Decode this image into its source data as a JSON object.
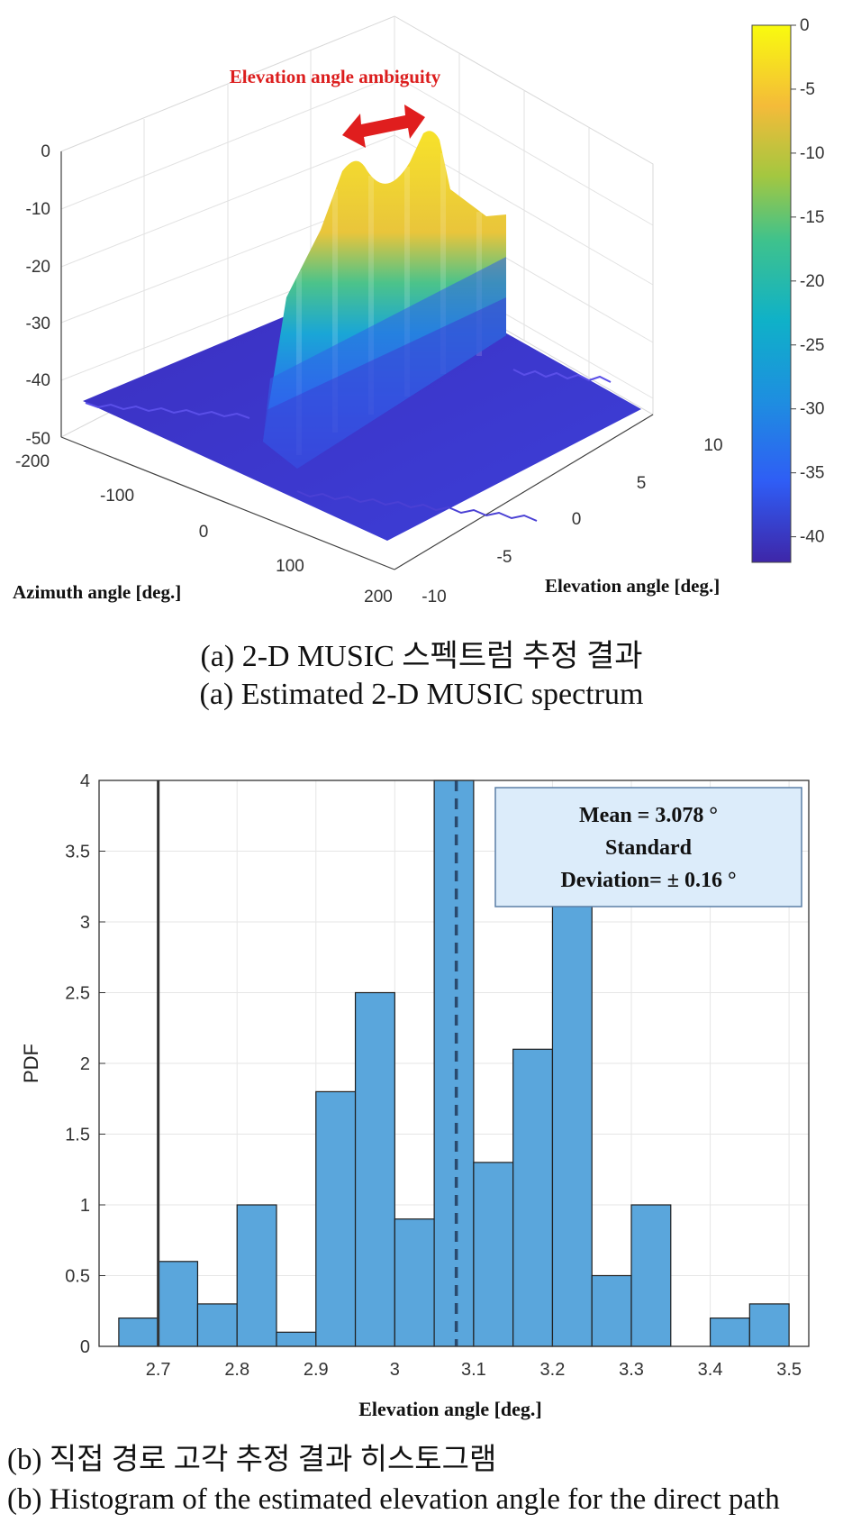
{
  "colors": {
    "bar": "#5aa6dc",
    "bar_edge": "#1f1f1f",
    "annotation_red": "#dc1e1e",
    "box_fill": "#dcecfa",
    "box_edge": "#5b7fa6"
  },
  "chart_data": [
    {
      "type": "surface3d",
      "title": "",
      "annotation": "Elevation angle ambiguity",
      "xlabel": "Azimuth angle [deg.]",
      "ylabel": "Elevation angle [deg.]",
      "zlabel": "",
      "x_ticks": [
        "-200",
        "-100",
        "0",
        "100",
        "200"
      ],
      "y_ticks": [
        "-10",
        "-5",
        "0",
        "5",
        "10"
      ],
      "z_ticks": [
        "0",
        "-10",
        "-20",
        "-30",
        "-40",
        "-50"
      ],
      "xlim": [
        -200,
        200
      ],
      "ylim": [
        -10,
        10
      ],
      "zlim": [
        -50,
        0
      ],
      "colorbar": {
        "ticks": [
          "0",
          "-5",
          "-10",
          "-15",
          "-20",
          "-25",
          "-30",
          "-35",
          "-40"
        ],
        "range": [
          -42,
          0
        ],
        "colormap": "parula"
      },
      "ridge_profile": {
        "elevation": [
          -10,
          -5,
          0,
          2.5,
          5,
          7.5,
          10
        ],
        "peak_db": [
          -42,
          -27,
          -15,
          -8,
          -4,
          -8,
          -14
        ]
      },
      "floor_db": -42
    },
    {
      "type": "histogram",
      "xlabel": "Elevation angle [deg.]",
      "ylabel": "PDF",
      "xlim": [
        2.625,
        3.525
      ],
      "ylim": [
        0,
        4
      ],
      "x_ticks": [
        "2.7",
        "2.8",
        "2.9",
        "3",
        "3.1",
        "3.2",
        "3.3",
        "3.4",
        "3.5"
      ],
      "y_ticks": [
        "0",
        "0.5",
        "1",
        "1.5",
        "2",
        "2.5",
        "3",
        "3.5",
        "4"
      ],
      "bin_width": 0.05,
      "bins": [
        {
          "left": 2.65,
          "value": 0.2
        },
        {
          "left": 2.7,
          "value": 0.6
        },
        {
          "left": 2.75,
          "value": 0.3
        },
        {
          "left": 2.8,
          "value": 1.0
        },
        {
          "left": 2.85,
          "value": 0.1
        },
        {
          "left": 2.9,
          "value": 1.8
        },
        {
          "left": 2.95,
          "value": 2.5
        },
        {
          "left": 3.0,
          "value": 0.9
        },
        {
          "left": 3.05,
          "value": 4.0
        },
        {
          "left": 3.1,
          "value": 1.3
        },
        {
          "left": 3.15,
          "value": 2.1
        },
        {
          "left": 3.2,
          "value": 3.2
        },
        {
          "left": 3.25,
          "value": 0.5
        },
        {
          "left": 3.3,
          "value": 1.0
        },
        {
          "left": 3.35,
          "value": 0.0
        },
        {
          "left": 3.4,
          "value": 0.2
        },
        {
          "left": 3.45,
          "value": 0.3
        }
      ],
      "reference_line_x": 2.7,
      "mean_line_x": 3.078,
      "legend_box": {
        "line1": "Mean = 3.078 °",
        "line2": "Standard",
        "line3": "Deviation= ± 0.16 °",
        "placement": "top-right"
      }
    }
  ],
  "captions": {
    "a_korean": "(a) 2-D MUSIC 스펙트럼 추정 결과",
    "a_english": "(a) Estimated 2-D MUSIC spectrum",
    "b_korean": "(b) 직접 경로 고각 추정 결과 히스토그램",
    "b_english": "(b) Histogram of the estimated elevation angle for the direct path"
  }
}
